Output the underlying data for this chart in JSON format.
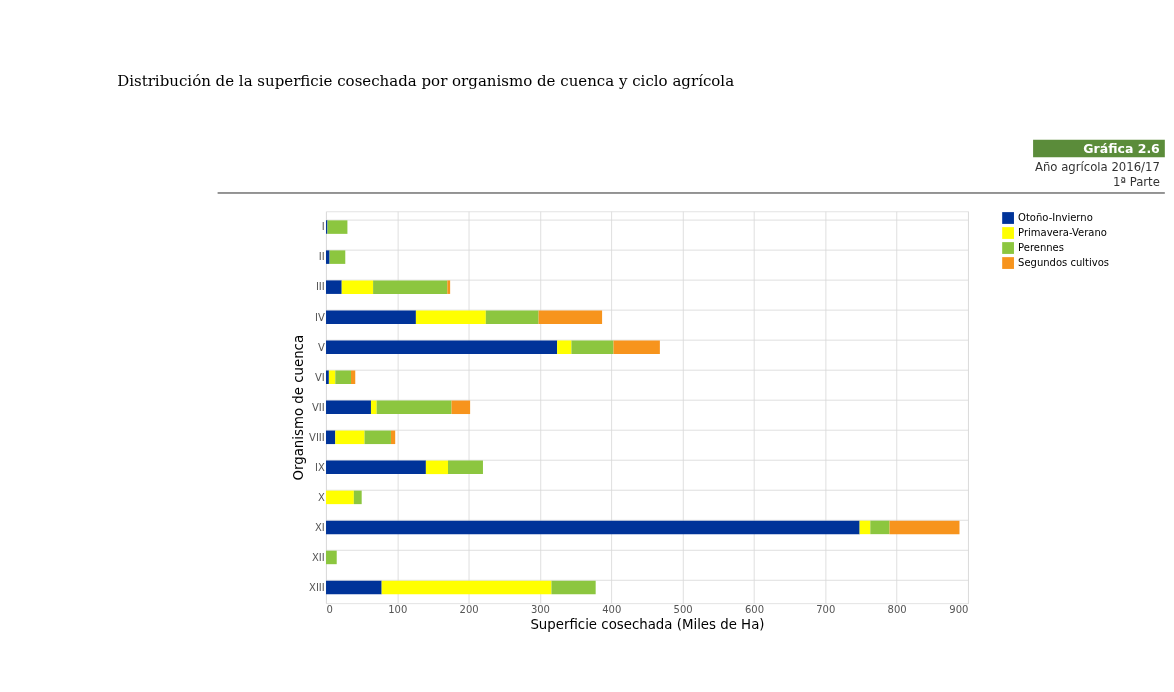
{
  "chart_data": {
    "type": "bar",
    "orientation": "horizontal",
    "stacked": true,
    "title": "Distribución de la superficie cosechada por organismo de cuenca y ciclo agrícola",
    "annotations": [
      "Gráfica 2.6",
      "Año agrícola 2016/17",
      "1ª Parte"
    ],
    "xlabel": "Superficie cosechada (Miles de Ha)",
    "ylabel": "Organismo de cuenca",
    "categories": [
      "I",
      "II",
      "III",
      "IV",
      "V",
      "VI",
      "VII",
      "VIII",
      "IX",
      "X",
      "XI",
      "XII",
      "XIII"
    ],
    "series": [
      {
        "name": "Otoño-Invierno",
        "color": "#003399",
        "values": [
          2,
          5,
          22,
          126,
          324,
          4,
          63,
          13,
          140,
          null,
          748,
          null,
          78
        ]
      },
      {
        "name": "Primavera-Verano",
        "color": "#ffff00",
        "values": [
          null,
          null,
          44,
          98,
          20,
          9,
          8,
          41,
          31,
          39,
          15,
          null,
          238
        ]
      },
      {
        "name": "Perennes",
        "color": "#8cc63f",
        "values": [
          28,
          22,
          104,
          74,
          59,
          22,
          105,
          37,
          49,
          11,
          27,
          15,
          62
        ]
      },
      {
        "name": "Segundos cultivos",
        "color": "#f7941d",
        "values": [
          null,
          null,
          4,
          89,
          65,
          6,
          26,
          6,
          null,
          null,
          98,
          null,
          null
        ]
      }
    ],
    "xlim": [
      0,
      900
    ],
    "xticks": [
      0,
      100,
      200,
      300,
      400,
      500,
      600,
      700,
      800,
      900
    ],
    "grid": true,
    "legend": "right"
  }
}
